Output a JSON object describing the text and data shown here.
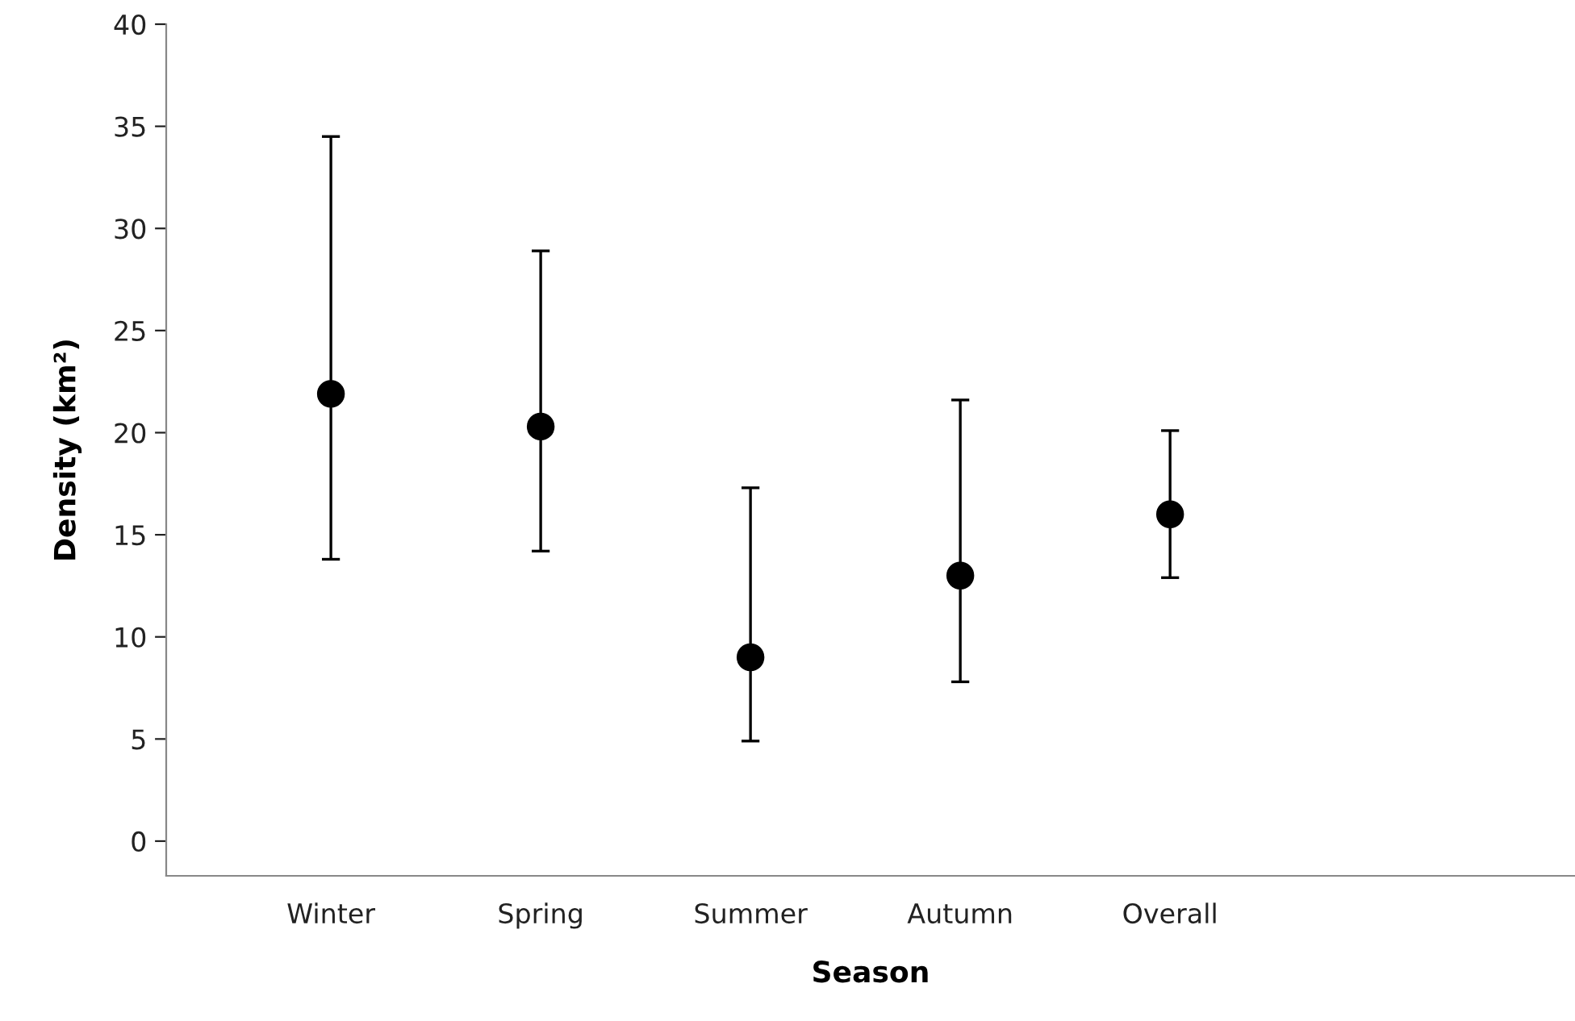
{
  "chart_data": {
    "type": "scatter",
    "xlabel": "Season",
    "ylabel": "Density (km²)",
    "categories": [
      "Winter",
      "Spring",
      "Summer",
      "Autumn",
      "Overall"
    ],
    "values": [
      21.9,
      20.3,
      9.0,
      13.0,
      16.0
    ],
    "errors": [
      [
        13.8,
        34.5
      ],
      [
        14.2,
        28.9
      ],
      [
        4.9,
        17.3
      ],
      [
        7.8,
        21.6
      ],
      [
        12.9,
        20.1
      ]
    ],
    "color": "#000000",
    "marker": "circle",
    "ylim": [
      -1.7,
      40
    ],
    "yticks": [
      0,
      5,
      10,
      15,
      20,
      25,
      30,
      35,
      40
    ],
    "grid": false
  }
}
